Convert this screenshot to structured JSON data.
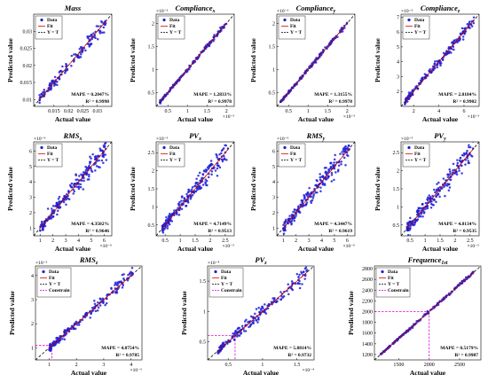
{
  "figure": {
    "legend": {
      "data_label": "Data",
      "fit_label": "Fit",
      "yt_label": "Y = T",
      "constrain_label": "Constrain"
    },
    "colors": {
      "data": "#1f1fd6",
      "fit": "#e00000",
      "yt": "#000000",
      "constrain": "#e000e0"
    }
  },
  "chart_data": [
    {
      "type": "scatter",
      "title": "Mass",
      "xlabel": "Actual value",
      "ylabel": "Predicted value",
      "xlim": [
        0.008,
        0.035
      ],
      "ylim": [
        0.008,
        0.035
      ],
      "xticks": [
        0.015,
        0.02,
        0.025,
        0.03
      ],
      "xtick_labels": [
        "0.015",
        "0.02",
        "0.025",
        "0.03"
      ],
      "yticks": [
        0.01,
        0.015,
        0.02,
        0.025,
        0.03
      ],
      "ytick_labels": [
        "0.01",
        "0.015",
        "0.02",
        "0.025",
        "0.03"
      ],
      "exponent": "",
      "mape": "MAPE = 0.2047%",
      "r2": "R² = 0.9998",
      "legend_entries": [
        "Data",
        "Fit",
        "Y = T"
      ],
      "point_range": [
        0.01,
        0.033
      ],
      "spread": 0.001,
      "n_points": 140
    },
    {
      "type": "scatter",
      "title": "Compliance_x",
      "title_main": "Compliance",
      "title_sub": "x",
      "xlabel": "Actual value",
      "ylabel": "Predicted value",
      "xlim": [
        0.2,
        2.2
      ],
      "ylim": [
        0.2,
        2.2
      ],
      "xticks": [
        0.5,
        1,
        1.5,
        2
      ],
      "xtick_labels": [
        "0.5",
        "1",
        "1.5",
        "2"
      ],
      "yticks": [
        0.5,
        1,
        1.5,
        2
      ],
      "ytick_labels": [
        "0.5",
        "1",
        "1.5",
        "2"
      ],
      "exponent": "×10⁻³",
      "mape": "MAPE = 1.2833%",
      "r2": "R² = 0.9978",
      "legend_entries": [
        "Data",
        "Fit",
        "Y = T"
      ],
      "point_range": [
        0.3,
        2.0
      ],
      "spread": 0.02,
      "n_points": 180
    },
    {
      "type": "scatter",
      "title": "Compliance_y",
      "title_main": "Compliance",
      "title_sub": "y",
      "xlabel": "Actual value",
      "ylabel": "Predicted value",
      "xlim": [
        0.2,
        2.2
      ],
      "ylim": [
        0.2,
        2.2
      ],
      "xticks": [
        0.5,
        1,
        1.5,
        2
      ],
      "xtick_labels": [
        "0.5",
        "1",
        "1.5",
        "2"
      ],
      "yticks": [
        0.5,
        1,
        1.5,
        2
      ],
      "ytick_labels": [
        "0.5",
        "1",
        "1.5",
        "2"
      ],
      "exponent": "×10⁻³",
      "mape": "MAPE = 1.3155%",
      "r2": "R² = 0.9978",
      "legend_entries": [
        "Data",
        "Fit",
        "Y = T"
      ],
      "point_range": [
        0.3,
        2.0
      ],
      "spread": 0.02,
      "n_points": 180
    },
    {
      "type": "scatter",
      "title": "Compliance_z",
      "title_main": "Compliance",
      "title_sub": "z",
      "xlabel": "Actual value",
      "ylabel": "Predicted value",
      "xlim": [
        1,
        7.2
      ],
      "ylim": [
        1,
        7.2
      ],
      "xticks": [
        2,
        4,
        6
      ],
      "xtick_labels": [
        "2",
        "4",
        "6"
      ],
      "yticks": [
        2,
        3,
        4,
        5,
        6,
        7
      ],
      "ytick_labels": [
        "2",
        "3",
        "4",
        "5",
        "6",
        "7"
      ],
      "exponent": "×10⁻³",
      "mape": "MAPE = 2.8184%",
      "r2": "R² = 0.9902",
      "legend_entries": [
        "Data",
        "Fit",
        "Y = T"
      ],
      "point_range": [
        1.3,
        6.8
      ],
      "spread": 0.15,
      "n_points": 200
    },
    {
      "type": "scatter",
      "title": "RMS_x",
      "title_main": "RMS",
      "title_sub": "x",
      "xlabel": "Actual value",
      "ylabel": "Predicted value",
      "xlim": [
        0.5,
        6.6
      ],
      "ylim": [
        0.5,
        6.6
      ],
      "xticks": [
        1,
        2,
        3,
        4,
        5,
        6
      ],
      "xtick_labels": [
        "1",
        "2",
        "3",
        "4",
        "5",
        "6"
      ],
      "yticks": [
        1,
        2,
        3,
        4,
        5,
        6
      ],
      "ytick_labels": [
        "1",
        "2",
        "3",
        "4",
        "5",
        "6"
      ],
      "exponent": "×10⁻⁶",
      "mape": "MAPE = 4.3502%",
      "r2": "R² = 0.9646",
      "legend_entries": [
        "Data",
        "Fit",
        "Y = T"
      ],
      "point_range": [
        1.0,
        6.2
      ],
      "spread": 0.3,
      "n_points": 220
    },
    {
      "type": "scatter",
      "title": "PV_x",
      "title_main": "PV",
      "title_sub": "x",
      "xlabel": "Actual value",
      "ylabel": "Predicted value",
      "xlim": [
        0.2,
        2.8
      ],
      "ylim": [
        0.2,
        2.8
      ],
      "xticks": [
        0.5,
        1,
        1.5,
        2,
        2.5
      ],
      "xtick_labels": [
        "0.5",
        "1",
        "1.5",
        "2",
        "2.5"
      ],
      "yticks": [
        0.5,
        1,
        1.5,
        2,
        2.5
      ],
      "ytick_labels": [
        "0.5",
        "1",
        "1.5",
        "2",
        "2.5"
      ],
      "exponent": "×10⁻⁵",
      "mape": "MAPE = 4.7149%",
      "r2": "R² = 0.9513",
      "legend_entries": [
        "Data",
        "Fit",
        "Y = T"
      ],
      "point_range": [
        0.4,
        2.6
      ],
      "spread": 0.13,
      "n_points": 220
    },
    {
      "type": "scatter",
      "title": "RMS_y",
      "title_main": "RMS",
      "title_sub": "y",
      "xlabel": "Actual value",
      "ylabel": "Predicted value",
      "xlim": [
        0.5,
        6.6
      ],
      "ylim": [
        0.5,
        6.6
      ],
      "xticks": [
        1,
        2,
        3,
        4,
        5,
        6
      ],
      "xtick_labels": [
        "1",
        "2",
        "3",
        "4",
        "5",
        "6"
      ],
      "yticks": [
        1,
        2,
        3,
        4,
        5,
        6
      ],
      "ytick_labels": [
        "1",
        "2",
        "3",
        "4",
        "5",
        "6"
      ],
      "exponent": "×10⁻⁶",
      "mape": "MAPE = 4.3447%",
      "r2": "R² = 0.9619",
      "legend_entries": [
        "Data",
        "Fit",
        "Y = T"
      ],
      "point_range": [
        1.0,
        6.2
      ],
      "spread": 0.3,
      "n_points": 220
    },
    {
      "type": "scatter",
      "title": "PV_y",
      "title_main": "PV",
      "title_sub": "y",
      "xlabel": "Actual value",
      "ylabel": "Predicted value",
      "xlim": [
        0.2,
        2.8
      ],
      "ylim": [
        0.2,
        2.8
      ],
      "xticks": [
        0.5,
        1,
        1.5,
        2,
        2.5
      ],
      "xtick_labels": [
        "0.5",
        "1",
        "1.5",
        "2",
        "2.5"
      ],
      "yticks": [
        0.5,
        1,
        1.5,
        2,
        2.5
      ],
      "ytick_labels": [
        "0.5",
        "1",
        "1.5",
        "2",
        "2.5"
      ],
      "exponent": "×10⁻⁵",
      "mape": "MAPE = 4.8134%",
      "r2": "R² = 0.9535",
      "legend_entries": [
        "Data",
        "Fit",
        "Y = T"
      ],
      "point_range": [
        0.4,
        2.6
      ],
      "spread": 0.13,
      "n_points": 220
    },
    {
      "type": "scatter",
      "title": "RMS_z",
      "title_main": "RMS",
      "title_sub": "z",
      "xlabel": "Actual value",
      "ylabel": "Predicted value",
      "xlim": [
        0.5,
        4.4
      ],
      "ylim": [
        0.5,
        4.4
      ],
      "xticks": [
        1,
        2,
        3,
        4
      ],
      "xtick_labels": [
        "1",
        "2",
        "3",
        "4"
      ],
      "yticks": [
        1,
        2,
        3,
        4
      ],
      "ytick_labels": [
        "1",
        "2",
        "3",
        "4"
      ],
      "exponent": "×10⁻⁵",
      "mape": "MAPE = 4.8754%",
      "r2": "R² = 0.9785",
      "legend_entries": [
        "Data",
        "Fit",
        "Y = T",
        "Constrain"
      ],
      "constrain": {
        "x": 1.1,
        "y": 1.1
      },
      "point_range": [
        1.0,
        4.1
      ],
      "spread": 0.12,
      "n_points": 200
    },
    {
      "type": "scatter",
      "title": "PV_z",
      "title_main": "PV",
      "title_sub": "z",
      "xlabel": "Actual value",
      "ylabel": "Predicted value",
      "xlim": [
        0.2,
        1.75
      ],
      "ylim": [
        0.2,
        1.75
      ],
      "xticks": [
        0.5,
        1,
        1.5
      ],
      "xtick_labels": [
        "0.5",
        "1",
        "1.5"
      ],
      "yticks": [
        0.5,
        1,
        1.5
      ],
      "ytick_labels": [
        "0.5",
        "1",
        "1.5"
      ],
      "exponent": "×10⁻⁴",
      "mape": "MAPE = 5.8814%",
      "r2": "R² = 0.9732",
      "legend_entries": [
        "Data",
        "Fit",
        "Y = T",
        "Constrain"
      ],
      "constrain": {
        "x": 0.6,
        "y": 0.6
      },
      "point_range": [
        0.35,
        1.65
      ],
      "spread": 0.06,
      "n_points": 200
    },
    {
      "type": "scatter",
      "title": "Frequence_1st",
      "title_main": "Frequence",
      "title_sub": "1st",
      "xlabel": "Actual value",
      "ylabel": "Predicted value",
      "xlim": [
        1100,
        2850
      ],
      "ylim": [
        1100,
        2850
      ],
      "xticks": [
        1500,
        2000,
        2500
      ],
      "xtick_labels": [
        "1500",
        "2000",
        "2500"
      ],
      "yticks": [
        1200,
        1400,
        1600,
        1800,
        2000,
        2200,
        2400,
        2600,
        2800
      ],
      "ytick_labels": [
        "1200",
        "1400",
        "1600",
        "1800",
        "2000",
        "2200",
        "2400",
        "2600",
        "2800"
      ],
      "exponent": "",
      "mape": "MAPE = 0.5179%",
      "r2": "R² = 0.9987",
      "legend_entries": [
        "Data",
        "Fit",
        "Y = T",
        "Constrain"
      ],
      "constrain": {
        "x": 2000,
        "y": 2000
      },
      "point_range": [
        1200,
        2750
      ],
      "spread": 12,
      "n_points": 200
    }
  ]
}
